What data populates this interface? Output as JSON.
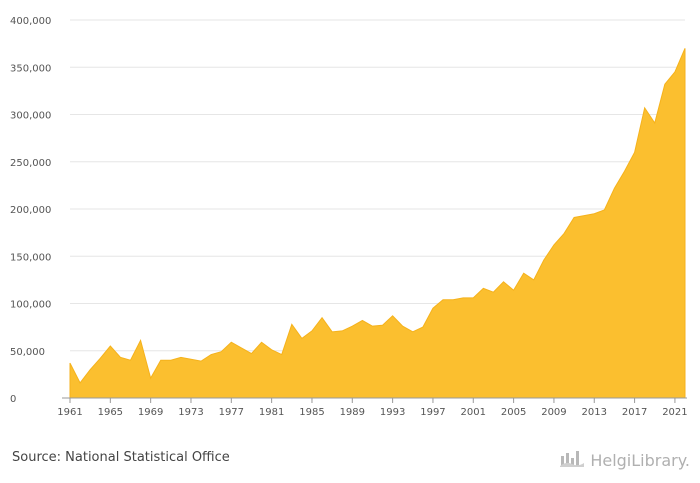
{
  "footer": {
    "source": "Source: National Statistical Office",
    "brand": "HelgiLibrary."
  },
  "icons": {
    "brand_logo": "helgi-library-logo-icon"
  },
  "colors": {
    "area_fill": "#FBBF2F",
    "area_line": "#F5B21C",
    "grid": "#E6E6E6",
    "axis": "#999999"
  },
  "chart_data": {
    "type": "area",
    "title": "",
    "xlabel": "",
    "ylabel": "",
    "ylim": [
      0,
      400000
    ],
    "xlim": [
      1961,
      2022
    ],
    "grid": true,
    "legend": "none",
    "y_ticks": [
      0,
      50000,
      100000,
      150000,
      200000,
      250000,
      300000,
      350000,
      400000
    ],
    "y_tick_labels": [
      "0",
      "50,000",
      "100,000",
      "150,000",
      "200,000",
      "250,000",
      "300,000",
      "350,000",
      "400,000"
    ],
    "x_ticks": [
      1961,
      1965,
      1969,
      1973,
      1977,
      1981,
      1985,
      1989,
      1993,
      1997,
      2001,
      2005,
      2009,
      2013,
      2017,
      2021
    ],
    "x_tick_labels": [
      "1961",
      "1965",
      "1969",
      "1973",
      "1977",
      "1981",
      "1985",
      "1989",
      "1993",
      "1997",
      "2001",
      "2005",
      "2009",
      "2013",
      "2017",
      "2021"
    ],
    "x": [
      1961,
      1962,
      1963,
      1964,
      1965,
      1966,
      1967,
      1968,
      1969,
      1970,
      1971,
      1972,
      1973,
      1974,
      1975,
      1976,
      1977,
      1978,
      1979,
      1980,
      1981,
      1982,
      1983,
      1984,
      1985,
      1986,
      1987,
      1988,
      1989,
      1990,
      1991,
      1992,
      1993,
      1994,
      1995,
      1996,
      1997,
      1998,
      1999,
      2000,
      2001,
      2002,
      2003,
      2004,
      2005,
      2006,
      2007,
      2008,
      2009,
      2010,
      2011,
      2012,
      2013,
      2014,
      2015,
      2016,
      2017,
      2018,
      2019,
      2020,
      2021,
      2022
    ],
    "series": [
      {
        "values": [
          37000,
          16000,
          30000,
          42000,
          55000,
          43000,
          40000,
          61000,
          21000,
          40000,
          40000,
          43000,
          41000,
          39000,
          46000,
          49000,
          59000,
          53000,
          47000,
          59000,
          51000,
          46000,
          78000,
          63000,
          71000,
          85000,
          70000,
          71000,
          76000,
          82000,
          76000,
          77000,
          87000,
          76000,
          70000,
          75000,
          95000,
          104000,
          104000,
          106000,
          106000,
          116000,
          112000,
          123000,
          114000,
          132000,
          125000,
          146000,
          162000,
          174000,
          191000,
          193000,
          195000,
          199000,
          222000,
          240000,
          260000,
          307000,
          291000,
          332000,
          345000,
          370000
        ]
      }
    ]
  }
}
